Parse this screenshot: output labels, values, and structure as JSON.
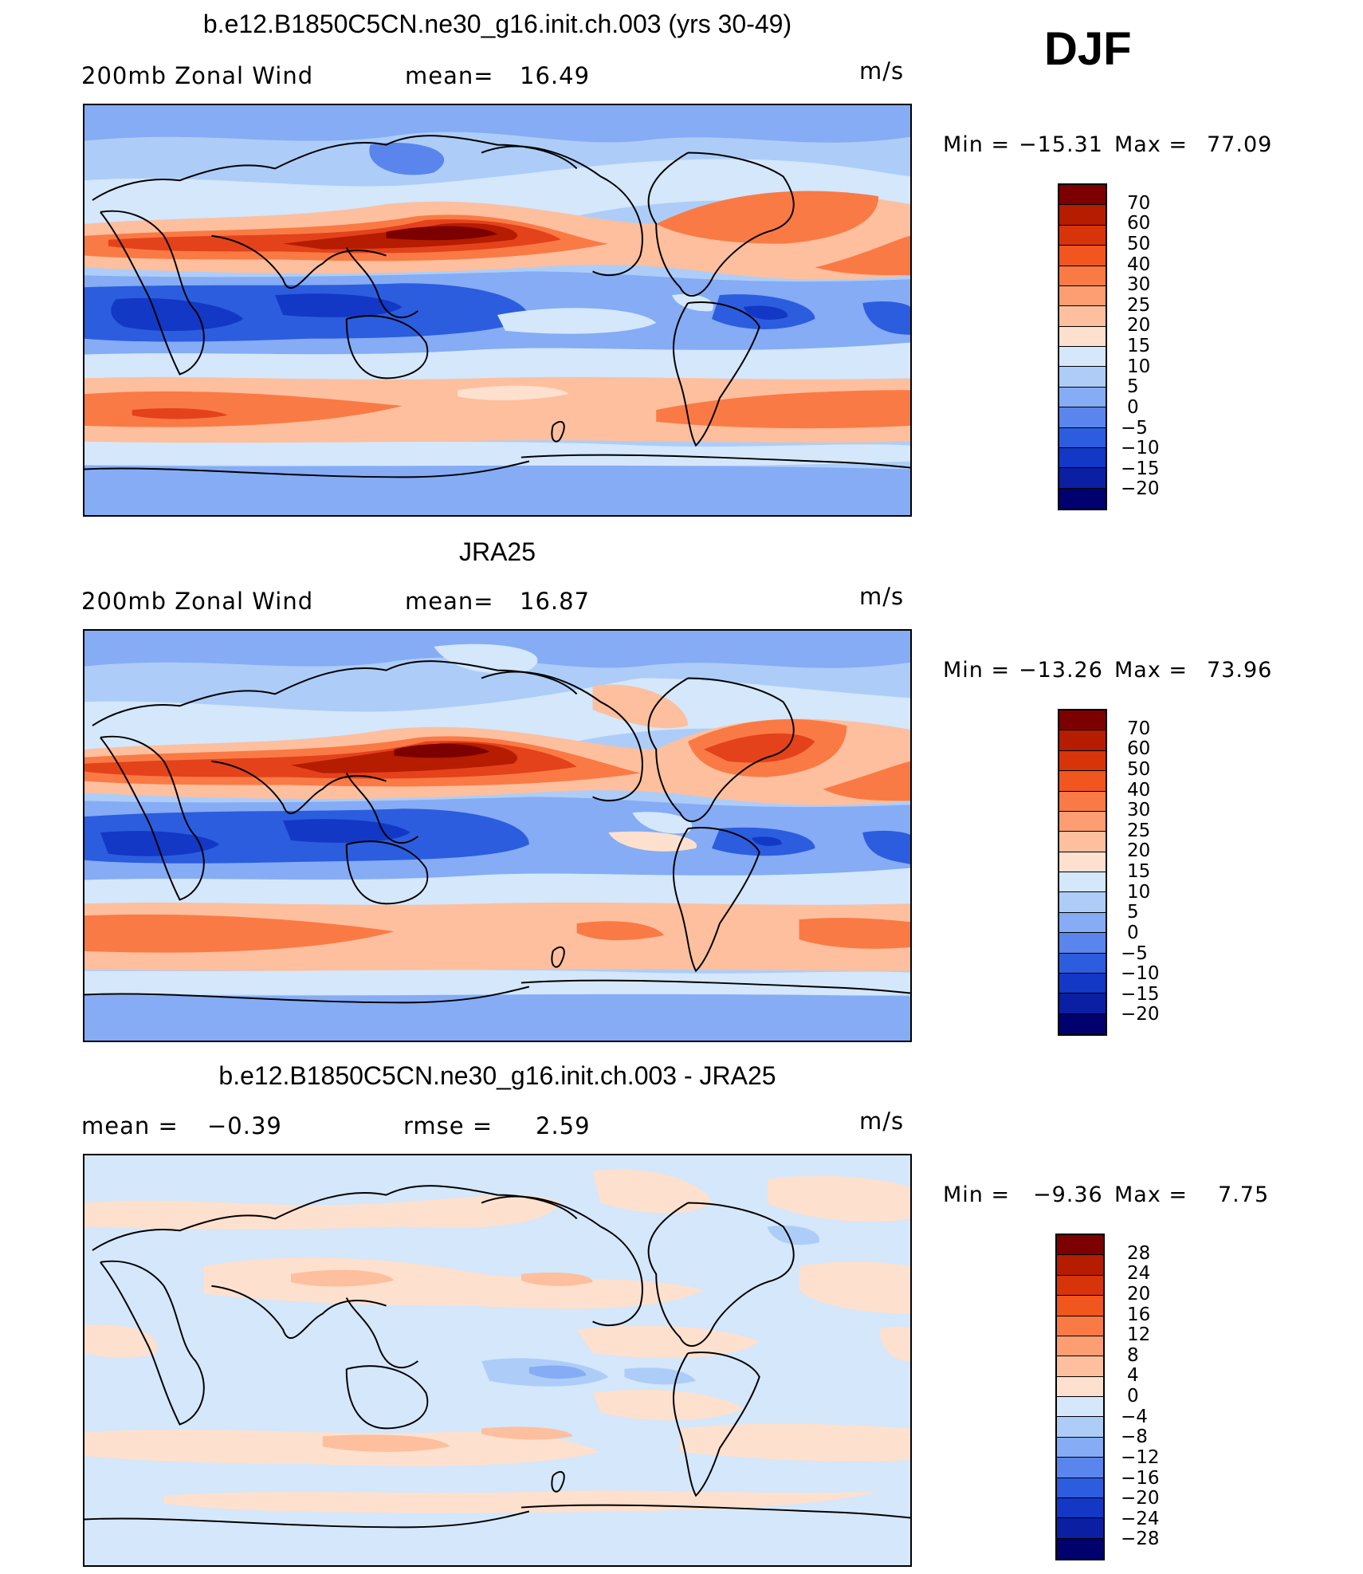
{
  "season": "DJF",
  "units": "m/s",
  "palette": {
    "dark_red": "#7d0000",
    "red": "#e4421b",
    "orange": "#fc8e5c",
    "peach": "#fdd1b8",
    "light_blue": "#d4e7fb",
    "blue": "#6f9cf0",
    "dark_blue": "#1843d6",
    "navy": "#00006e"
  },
  "panels": [
    {
      "id": "model",
      "title": "b.e12.B1850C5CN.ne30_g16.init.ch.003 (yrs 30-49)",
      "field_label": "200mb Zonal Wind",
      "stat1_label": "mean=",
      "stat1_value": "16.49",
      "stat2_label": "",
      "stat2_value": "",
      "units": "m/s",
      "min_label": "Min  =",
      "min_value": "−15.31",
      "max_label": "Max  =",
      "max_value": "77.09",
      "colorbar_labels": [
        "70",
        "60",
        "50",
        "40",
        "30",
        "25",
        "20",
        "15",
        "10",
        "5",
        "0",
        "−5",
        "−10",
        "−15",
        "−20"
      ],
      "colorbar_colors": [
        "#7d0000",
        "#b51c00",
        "#d8340a",
        "#f0561e",
        "#fa7a45",
        "#fc9e72",
        "#fdbf9e",
        "#fde0cd",
        "#d4e7fb",
        "#adcdf8",
        "#85acf4",
        "#5a85ec",
        "#2c5ddf",
        "#1238c5",
        "#0a1fa2",
        "#00006e"
      ]
    },
    {
      "id": "obs",
      "title": "JRA25",
      "field_label": "200mb Zonal Wind",
      "stat1_label": "mean=",
      "stat1_value": "16.87",
      "stat2_label": "",
      "stat2_value": "",
      "units": "m/s",
      "min_label": "Min  =",
      "min_value": "−13.26",
      "max_label": "Max  =",
      "max_value": "73.96",
      "colorbar_labels": [
        "70",
        "60",
        "50",
        "40",
        "30",
        "25",
        "20",
        "15",
        "10",
        "5",
        "0",
        "−5",
        "−10",
        "−15",
        "−20"
      ],
      "colorbar_colors": [
        "#7d0000",
        "#b51c00",
        "#d8340a",
        "#f0561e",
        "#fa7a45",
        "#fc9e72",
        "#fdbf9e",
        "#fde0cd",
        "#d4e7fb",
        "#adcdf8",
        "#85acf4",
        "#5a85ec",
        "#2c5ddf",
        "#1238c5",
        "#0a1fa2",
        "#00006e"
      ]
    },
    {
      "id": "diff",
      "title": "b.e12.B1850C5CN.ne30_g16.init.ch.003 - JRA25",
      "field_label": "",
      "stat1_label": "mean =",
      "stat1_value": "−0.39",
      "stat2_label": "rmse =",
      "stat2_value": "2.59",
      "units": "m/s",
      "min_label": "Min  =",
      "min_value": "−9.36",
      "max_label": "Max  =",
      "max_value": "7.75",
      "colorbar_labels": [
        "28",
        "24",
        "20",
        "16",
        "12",
        "8",
        "4",
        "0",
        "−4",
        "−8",
        "−12",
        "−16",
        "−20",
        "−24",
        "−28"
      ],
      "colorbar_colors": [
        "#7d0000",
        "#b51c00",
        "#d8340a",
        "#f0561e",
        "#fa7a45",
        "#fc9e72",
        "#fdbf9e",
        "#fde0cd",
        "#d4e7fb",
        "#adcdf8",
        "#85acf4",
        "#5a85ec",
        "#2c5ddf",
        "#1238c5",
        "#0a1fa2",
        "#00006e"
      ]
    }
  ]
}
